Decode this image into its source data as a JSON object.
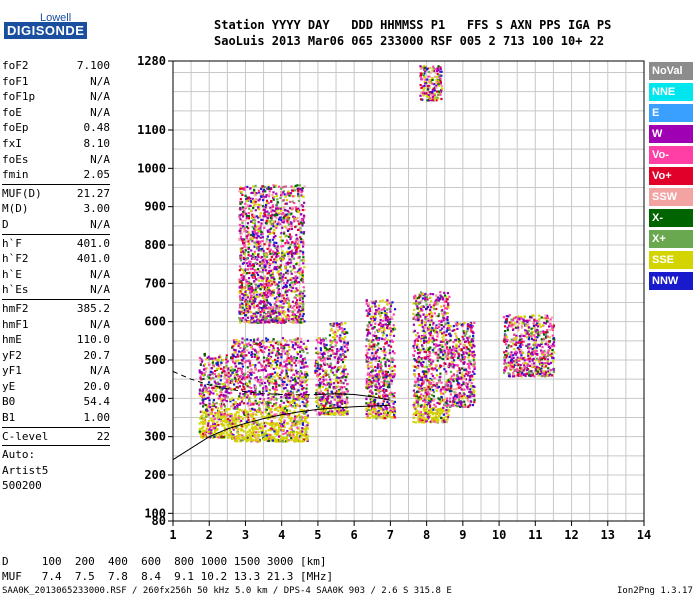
{
  "logo": {
    "line1": "Lowell",
    "line2": "DIGISONDE"
  },
  "header": {
    "labels": "Station YYYY DAY   DDD HHMMSS P1   FFS S AXN PPS IGA PS",
    "values": "SaoLuis 2013 Mar06 065 233000 RSF 005 2 713 100 10+ 22"
  },
  "params": [
    [
      {
        "k": "foF2",
        "v": "7.100"
      },
      {
        "k": "foF1",
        "v": "N/A"
      },
      {
        "k": "foF1p",
        "v": "N/A"
      },
      {
        "k": "foE",
        "v": "N/A"
      },
      {
        "k": "foEp",
        "v": "0.48"
      },
      {
        "k": "fxI",
        "v": "8.10"
      },
      {
        "k": "foEs",
        "v": "N/A"
      },
      {
        "k": "fmin",
        "v": "2.05"
      }
    ],
    [
      {
        "k": "MUF(D)",
        "v": "21.27"
      },
      {
        "k": "M(D)",
        "v": "3.00"
      },
      {
        "k": "D",
        "v": "N/A"
      }
    ],
    [
      {
        "k": "h`F",
        "v": "401.0"
      },
      {
        "k": "h`F2",
        "v": "401.0"
      },
      {
        "k": "h`E",
        "v": "N/A"
      },
      {
        "k": "h`Es",
        "v": "N/A"
      }
    ],
    [
      {
        "k": "hmF2",
        "v": "385.2"
      },
      {
        "k": "hmF1",
        "v": "N/A"
      },
      {
        "k": "hmE",
        "v": "110.0"
      },
      {
        "k": "yF2",
        "v": "20.7"
      },
      {
        "k": "yF1",
        "v": "N/A"
      },
      {
        "k": "yE",
        "v": "20.0"
      },
      {
        "k": "B0",
        "v": "54.4"
      },
      {
        "k": "B1",
        "v": "1.00"
      }
    ],
    [
      {
        "k": "C-level",
        "v": "22"
      }
    ]
  ],
  "auto": [
    "Auto:",
    "Artist5",
    "500200"
  ],
  "legend": [
    {
      "label": "NoVal",
      "color": "#8c8c8c"
    },
    {
      "label": "NNE",
      "color": "#00e5ee"
    },
    {
      "label": "E",
      "color": "#3aa0ff"
    },
    {
      "label": "W",
      "color": "#a000b4"
    },
    {
      "label": "Vo-",
      "color": "#ff3fa6"
    },
    {
      "label": "Vo+",
      "color": "#e0002a"
    },
    {
      "label": "SSW",
      "color": "#f4a3a3"
    },
    {
      "label": "X-",
      "color": "#006400"
    },
    {
      "label": "X+",
      "color": "#6aa84f"
    },
    {
      "label": "SSE",
      "color": "#d4d400"
    },
    {
      "label": "NNW",
      "color": "#1a1acd"
    }
  ],
  "muf_table": {
    "d_line": "D     100  200  400  600  800 1000 1500 3000 [km]",
    "muf_line": "MUF   7.4  7.5  7.8  8.4  9.1 10.2 13.3 21.3 [MHz]"
  },
  "footer": {
    "left": "SAA0K_2013065233000.RSF / 260fx256h 50 kHz 5.0 km / DPS-4 SAA0K 903 / 2.6 S 315.8 E",
    "right": "Ion2Png 1.3.17"
  },
  "chart_data": {
    "type": "scatter",
    "xlim": [
      1,
      14
    ],
    "ylim": [
      80,
      1280
    ],
    "xticks": [
      "1",
      "2",
      "3",
      "4",
      "5",
      "6",
      "7",
      "8",
      "9",
      "10",
      "11",
      "12",
      "13",
      "14"
    ],
    "yticks": [
      {
        "v": 80,
        "label": "80"
      },
      {
        "v": 100,
        "label": "100"
      },
      {
        "v": 200,
        "label": "200"
      },
      {
        "v": 300,
        "label": "300"
      },
      {
        "v": 400,
        "label": "400"
      },
      {
        "v": 500,
        "label": "500"
      },
      {
        "v": 600,
        "label": "600"
      },
      {
        "v": 700,
        "label": "700"
      },
      {
        "v": 800,
        "label": "800"
      },
      {
        "v": 900,
        "label": "900"
      },
      {
        "v": 1000,
        "label": "1000"
      },
      {
        "v": 1100,
        "label": "1100"
      },
      {
        "v": 1280,
        "label": "1280"
      }
    ],
    "grid": true,
    "clusters": [
      {
        "f": [
          1.7,
          2.6
        ],
        "h": [
          300,
          520
        ]
      },
      {
        "f": [
          2.6,
          4.7
        ],
        "h": [
          290,
          560
        ]
      },
      {
        "f": [
          2.8,
          4.6
        ],
        "h": [
          600,
          960
        ]
      },
      {
        "f": [
          4.9,
          5.3
        ],
        "h": [
          360,
          560
        ]
      },
      {
        "f": [
          5.3,
          5.8
        ],
        "h": [
          360,
          600
        ]
      },
      {
        "f": [
          6.3,
          7.1
        ],
        "h": [
          350,
          660
        ]
      },
      {
        "f": [
          7.6,
          8.6
        ],
        "h": [
          340,
          680
        ]
      },
      {
        "f": [
          8.6,
          9.3
        ],
        "h": [
          380,
          600
        ]
      },
      {
        "f": [
          10.1,
          11.5
        ],
        "h": [
          460,
          620
        ]
      },
      {
        "f": [
          7.8,
          8.4
        ],
        "h": [
          1180,
          1270
        ]
      }
    ],
    "curves": [
      {
        "name": "",
        "style": "solid",
        "points": [
          [
            1,
            240
          ],
          [
            1.5,
            270
          ],
          [
            2,
            300
          ],
          [
            2.5,
            320
          ],
          [
            3,
            335
          ],
          [
            3.5,
            347
          ],
          [
            4,
            357
          ],
          [
            4.5,
            365
          ],
          [
            5,
            371
          ],
          [
            5.5,
            375
          ],
          [
            6,
            378
          ],
          [
            6.5,
            380
          ],
          [
            7,
            382
          ]
        ]
      },
      {
        "name": "",
        "style": "dashed",
        "points": [
          [
            1,
            470
          ],
          [
            1.5,
            450
          ],
          [
            2,
            435
          ],
          [
            2.5,
            425
          ],
          [
            3,
            417
          ],
          [
            3.5,
            412
          ],
          [
            4,
            410
          ],
          [
            4.5,
            409
          ],
          [
            5,
            410
          ]
        ]
      },
      {
        "name": "",
        "style": "solid",
        "points": [
          [
            5,
            410
          ],
          [
            5.5,
            412
          ],
          [
            6,
            410
          ],
          [
            6.5,
            404
          ],
          [
            7,
            395
          ]
        ]
      }
    ]
  }
}
